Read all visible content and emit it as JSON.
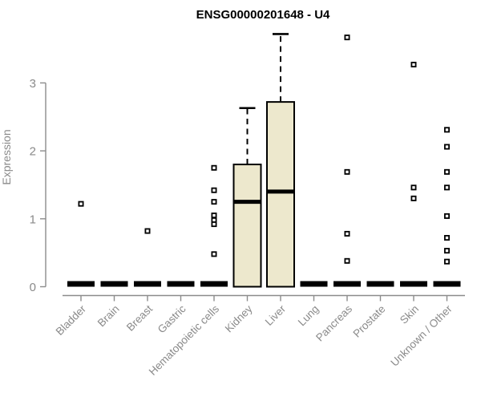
{
  "header": {
    "title": "ENSG00000201648 - U4"
  },
  "chart_data": {
    "type": "boxplot",
    "title": "ENSG00000201648 - U4",
    "xlabel": "",
    "ylabel": "Expression",
    "yticks": [
      0,
      1,
      2,
      3
    ],
    "ylim": [
      0,
      3.85
    ],
    "grid": false,
    "legend": "none",
    "categories": [
      "Bladder",
      "Brain",
      "Breast",
      "Gastric",
      "Hematopoietic cells",
      "Kidney",
      "Liver",
      "Lung",
      "Pancreas",
      "Prostate",
      "Skin",
      "Unknown / Other"
    ],
    "series": [
      {
        "category": "Bladder",
        "q1": 0,
        "median": 0,
        "q3": 0,
        "whisker_low": 0,
        "whisker_high": 0,
        "outliers": [
          1.22
        ]
      },
      {
        "category": "Brain",
        "q1": 0,
        "median": 0,
        "q3": 0,
        "whisker_low": 0,
        "whisker_high": 0,
        "outliers": []
      },
      {
        "category": "Breast",
        "q1": 0,
        "median": 0,
        "q3": 0,
        "whisker_low": 0,
        "whisker_high": 0,
        "outliers": [
          0.82
        ]
      },
      {
        "category": "Gastric",
        "q1": 0,
        "median": 0,
        "q3": 0,
        "whisker_low": 0,
        "whisker_high": 0,
        "outliers": []
      },
      {
        "category": "Hematopoietic cells",
        "q1": 0,
        "median": 0,
        "q3": 0,
        "whisker_low": 0,
        "whisker_high": 0,
        "outliers": [
          1.75,
          1.42,
          1.25,
          1.05,
          0.98,
          0.92,
          0.48
        ]
      },
      {
        "category": "Kidney",
        "q1": 0,
        "median": 1.25,
        "q3": 1.8,
        "whisker_low": 0,
        "whisker_high": 2.63,
        "outliers": []
      },
      {
        "category": "Liver",
        "q1": 0,
        "median": 1.4,
        "q3": 2.72,
        "whisker_low": 0,
        "whisker_high": 3.72,
        "outliers": []
      },
      {
        "category": "Lung",
        "q1": 0,
        "median": 0,
        "q3": 0,
        "whisker_low": 0,
        "whisker_high": 0,
        "outliers": []
      },
      {
        "category": "Pancreas",
        "q1": 0,
        "median": 0,
        "q3": 0,
        "whisker_low": 0,
        "whisker_high": 0,
        "outliers": [
          3.67,
          1.69,
          0.78,
          0.38
        ]
      },
      {
        "category": "Prostate",
        "q1": 0,
        "median": 0,
        "q3": 0,
        "whisker_low": 0,
        "whisker_high": 0,
        "outliers": []
      },
      {
        "category": "Skin",
        "q1": 0,
        "median": 0,
        "q3": 0,
        "whisker_low": 0,
        "whisker_high": 0,
        "outliers": [
          3.27,
          1.46,
          1.3
        ]
      },
      {
        "category": "Unknown / Other",
        "q1": 0,
        "median": 0,
        "q3": 0,
        "whisker_low": 0,
        "whisker_high": 0,
        "outliers": [
          2.31,
          2.06,
          1.69,
          1.46,
          1.04,
          0.72,
          0.53,
          0.37
        ]
      }
    ],
    "colors": {
      "box_fill": "#EDE8CD",
      "box_stroke": "#000000",
      "median": "#000000",
      "whisker": "#000000",
      "outlier_stroke": "#000000",
      "outlier_fill": "#FFFFFF",
      "axis": "#8C8C8C",
      "tick_label": "#8A8A8A",
      "title": "#000000"
    }
  }
}
